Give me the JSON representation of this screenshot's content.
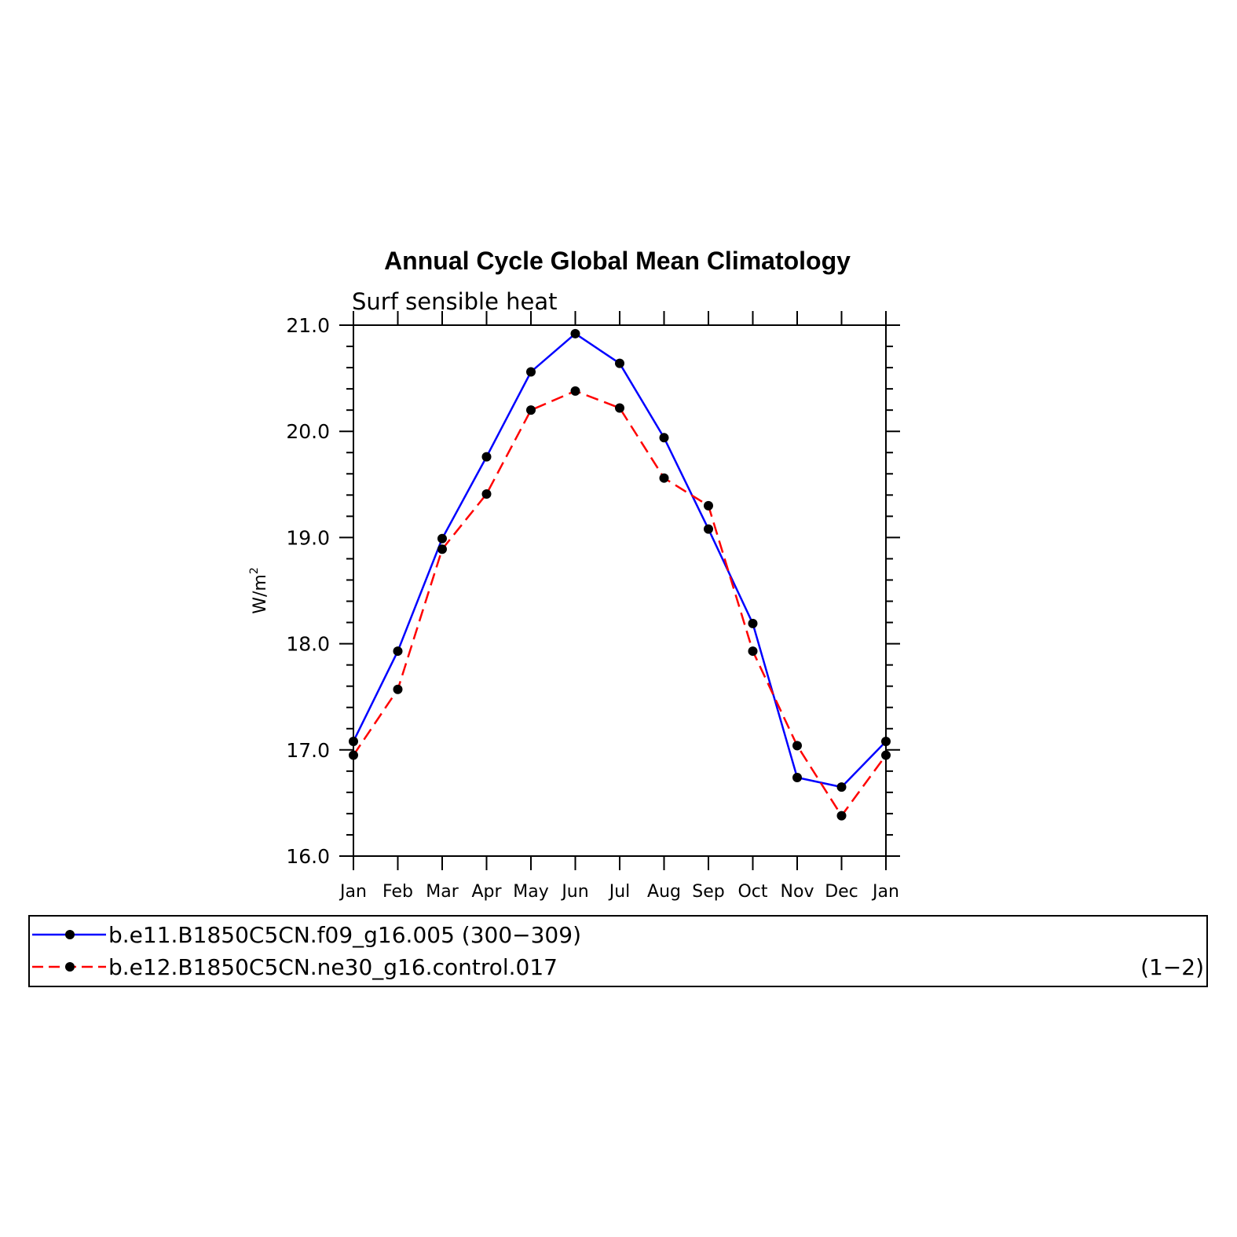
{
  "chart_data": {
    "type": "line",
    "title": "Annual Cycle Global Mean Climatology",
    "subtitle": "Surf sensible heat",
    "ylabel": "W/m",
    "ylabel_sup": "2",
    "ylim": [
      16.0,
      21.0
    ],
    "y_ticks": [
      "16.0",
      "17.0",
      "18.0",
      "19.0",
      "20.0",
      "21.0"
    ],
    "categories": [
      "Jan",
      "Feb",
      "Mar",
      "Apr",
      "May",
      "Jun",
      "Jul",
      "Aug",
      "Sep",
      "Oct",
      "Nov",
      "Dec",
      "Jan"
    ],
    "grid": false,
    "legend_position": "bottom",
    "series": [
      {
        "name": "b.e11.B1850C5CN.f09_g16.005 (300−309)",
        "color": "#0000ff",
        "dash": "solid",
        "values": [
          17.08,
          17.93,
          18.99,
          19.76,
          20.56,
          20.92,
          20.64,
          19.94,
          19.08,
          18.19,
          16.74,
          16.65,
          17.08
        ]
      },
      {
        "name": "b.e12.B1850C5CN.ne30_g16.control.017",
        "color": "#ff0000",
        "dash": "dashed",
        "values": [
          16.95,
          17.57,
          18.89,
          19.41,
          20.2,
          20.38,
          20.22,
          19.56,
          19.3,
          17.93,
          17.04,
          16.38,
          16.95
        ]
      }
    ],
    "legend_note": "(1−2)"
  }
}
